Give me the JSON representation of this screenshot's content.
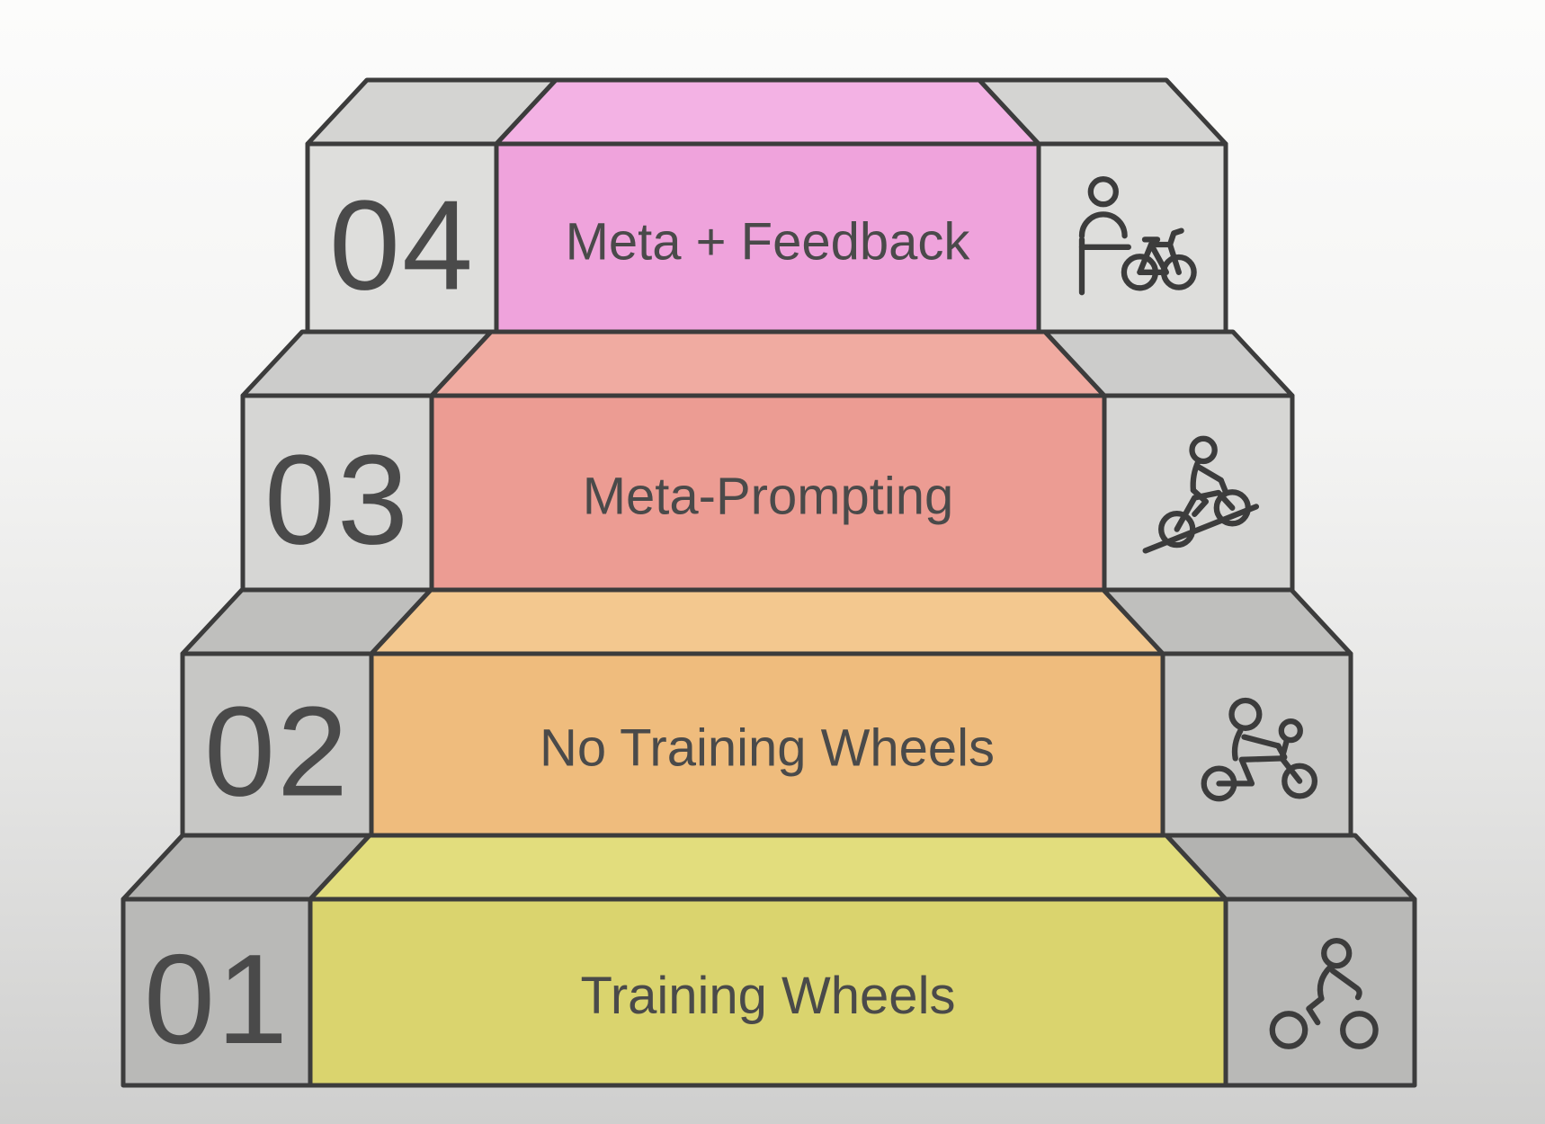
{
  "diagram": {
    "name": "prompting-skill-staircase",
    "steps": [
      {
        "number": "04",
        "label": "Meta + Feedback",
        "icon": "person-with-bike-icon",
        "panel_color": "#efa3dc",
        "panel_top_color": "#f3b2e4",
        "gray_color": "#dededc",
        "gray_top_color": "#d4d4d2"
      },
      {
        "number": "03",
        "label": "Meta-Prompting",
        "icon": "uphill-cyclist-icon",
        "panel_color": "#ec9c93",
        "panel_top_color": "#f0aba1",
        "gray_color": "#d6d6d4",
        "gray_top_color": "#cccccb"
      },
      {
        "number": "02",
        "label": "No Training Wheels",
        "icon": "adult-child-bike-icon",
        "panel_color": "#efbc7d",
        "panel_top_color": "#f3c88f",
        "gray_color": "#c7c7c5",
        "gray_top_color": "#bfbfbd"
      },
      {
        "number": "01",
        "label": "Training Wheels",
        "icon": "cyclist-icon",
        "panel_color": "#dad46e",
        "panel_top_color": "#e2dd7d",
        "gray_color": "#b9b9b7",
        "gray_top_color": "#b3b3b1"
      }
    ],
    "colors": {
      "outline": "#3c3c3c",
      "text": "#4a4a4a",
      "background_top": "#fcfcfb",
      "background_bottom": "#cfcfce"
    }
  }
}
